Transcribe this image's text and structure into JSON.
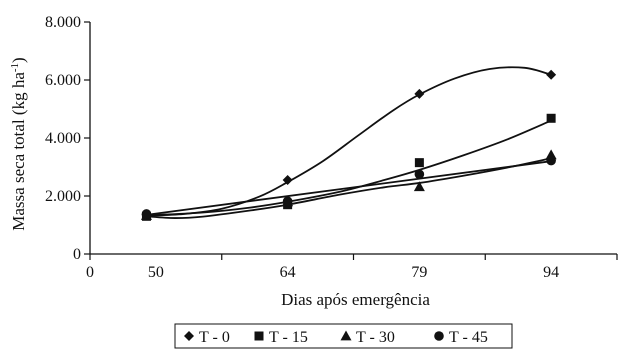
{
  "chart_data": {
    "type": "scatter",
    "xlabel": "Dias após emergência",
    "ylabel_main": "Massa seca total (kg ha",
    "ylabel_sup": "-1",
    "ylabel_close": ")",
    "xlim": [
      0,
      100
    ],
    "ylim": [
      0,
      8000
    ],
    "x_ticks": [
      0,
      50,
      64,
      79,
      94
    ],
    "x_tick_labels": [
      "0",
      "50",
      "64",
      "79",
      "94"
    ],
    "y_ticks": [
      0,
      2000,
      4000,
      6000,
      8000
    ],
    "y_tick_labels": [
      "0",
      "2.000",
      "4.000",
      "6.000",
      "8.000"
    ],
    "grid": false,
    "legend_position": "bottom",
    "series": [
      {
        "name": "T - 0",
        "marker": "diamond",
        "x": [
          49,
          64,
          79,
          94
        ],
        "y": [
          1350,
          2550,
          5520,
          6180
        ],
        "fit": [
          [
            49,
            1320
          ],
          [
            53,
            1380
          ],
          [
            57,
            1560
          ],
          [
            61,
            1980
          ],
          [
            64,
            2480
          ],
          [
            68,
            3200
          ],
          [
            72,
            4080
          ],
          [
            76,
            4950
          ],
          [
            79,
            5500
          ],
          [
            83,
            6050
          ],
          [
            87,
            6380
          ],
          [
            91,
            6420
          ],
          [
            94,
            6180
          ]
        ]
      },
      {
        "name": "T - 15",
        "marker": "square",
        "x": [
          49,
          64,
          79,
          94
        ],
        "y": [
          1300,
          1700,
          3150,
          4680
        ],
        "fit": [
          [
            49,
            1330
          ],
          [
            55,
            1430
          ],
          [
            60,
            1600
          ],
          [
            64,
            1800
          ],
          [
            70,
            2150
          ],
          [
            75,
            2550
          ],
          [
            79,
            2900
          ],
          [
            84,
            3400
          ],
          [
            89,
            3950
          ],
          [
            94,
            4600
          ]
        ]
      },
      {
        "name": "T - 30",
        "marker": "triangle",
        "x": [
          49,
          64,
          79,
          94
        ],
        "y": [
          1330,
          1800,
          2320,
          3420
        ],
        "fit": [
          [
            49,
            1300
          ],
          [
            52,
            1240
          ],
          [
            55,
            1290
          ],
          [
            60,
            1500
          ],
          [
            64,
            1700
          ],
          [
            70,
            2050
          ],
          [
            75,
            2300
          ],
          [
            79,
            2450
          ],
          [
            84,
            2700
          ],
          [
            89,
            2980
          ],
          [
            94,
            3300
          ]
        ]
      },
      {
        "name": "T - 45",
        "marker": "circle",
        "x": [
          49,
          64,
          79,
          94
        ],
        "y": [
          1380,
          1820,
          2750,
          3220
        ],
        "fit": [
          [
            49,
            1350
          ],
          [
            94,
            3200
          ]
        ]
      }
    ]
  }
}
